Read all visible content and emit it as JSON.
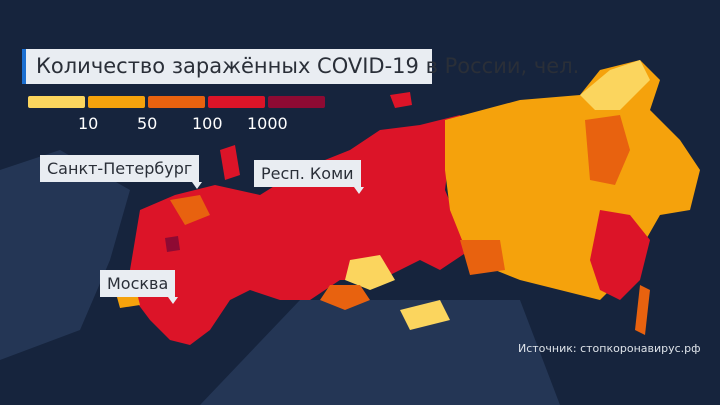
{
  "title": "Количество заражённых COVID-19 в России, чел.",
  "legend": {
    "colors": [
      "#fbd55e",
      "#f5a20c",
      "#e8620f",
      "#dc1428",
      "#8e0a33"
    ],
    "ticks": [
      "10",
      "50",
      "100",
      "1000"
    ]
  },
  "callouts": {
    "spb": "Санкт-Петербург",
    "komi": "Респ. Коми",
    "moscow": "Москва"
  },
  "source": "Источник: стопкоронавирус.рф",
  "background": "#16243d"
}
